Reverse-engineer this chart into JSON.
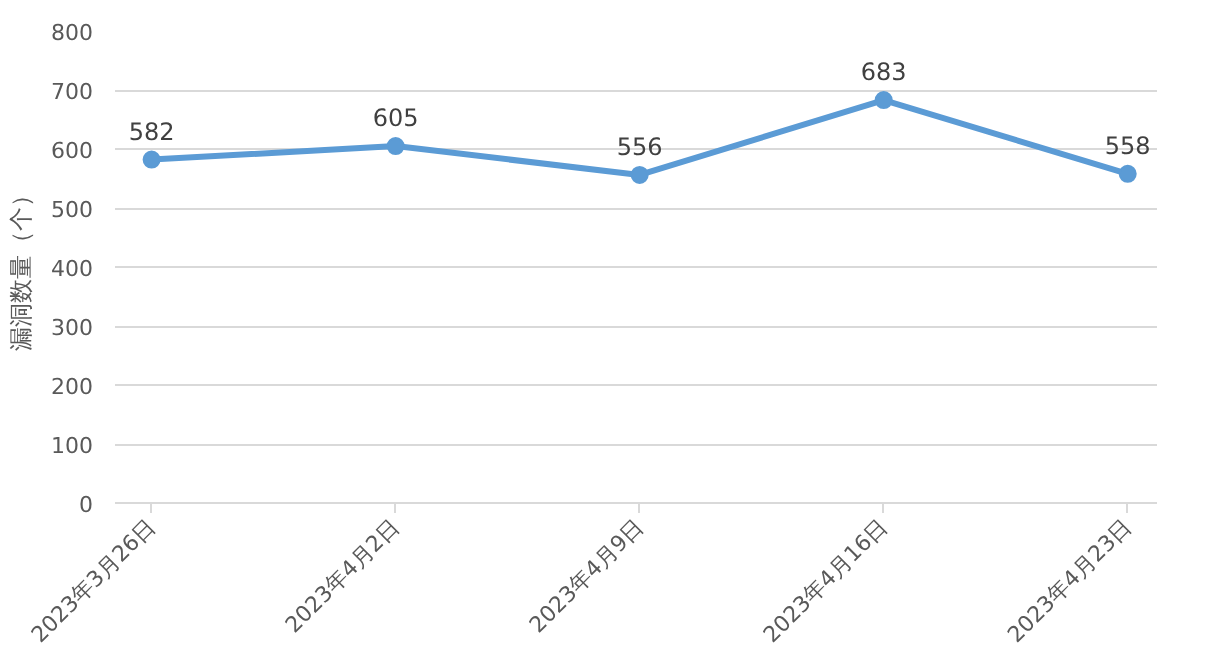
{
  "chart_data": {
    "type": "line",
    "ylabel": "漏洞数量（个）",
    "categories": [
      "2023年3月26日",
      "2023年4月2日",
      "2023年4月9日",
      "2023年4月16日",
      "2023年4月23日"
    ],
    "series": [
      {
        "color": "#5b9bd5",
        "values": [
          582,
          605,
          556,
          683,
          558
        ]
      }
    ],
    "ylim": [
      0,
      800
    ],
    "yticks": [
      0,
      100,
      200,
      300,
      400,
      500,
      600,
      700,
      800
    ],
    "grid": "y",
    "marker": "circle",
    "line_style": "solid",
    "data_labels": true
  }
}
